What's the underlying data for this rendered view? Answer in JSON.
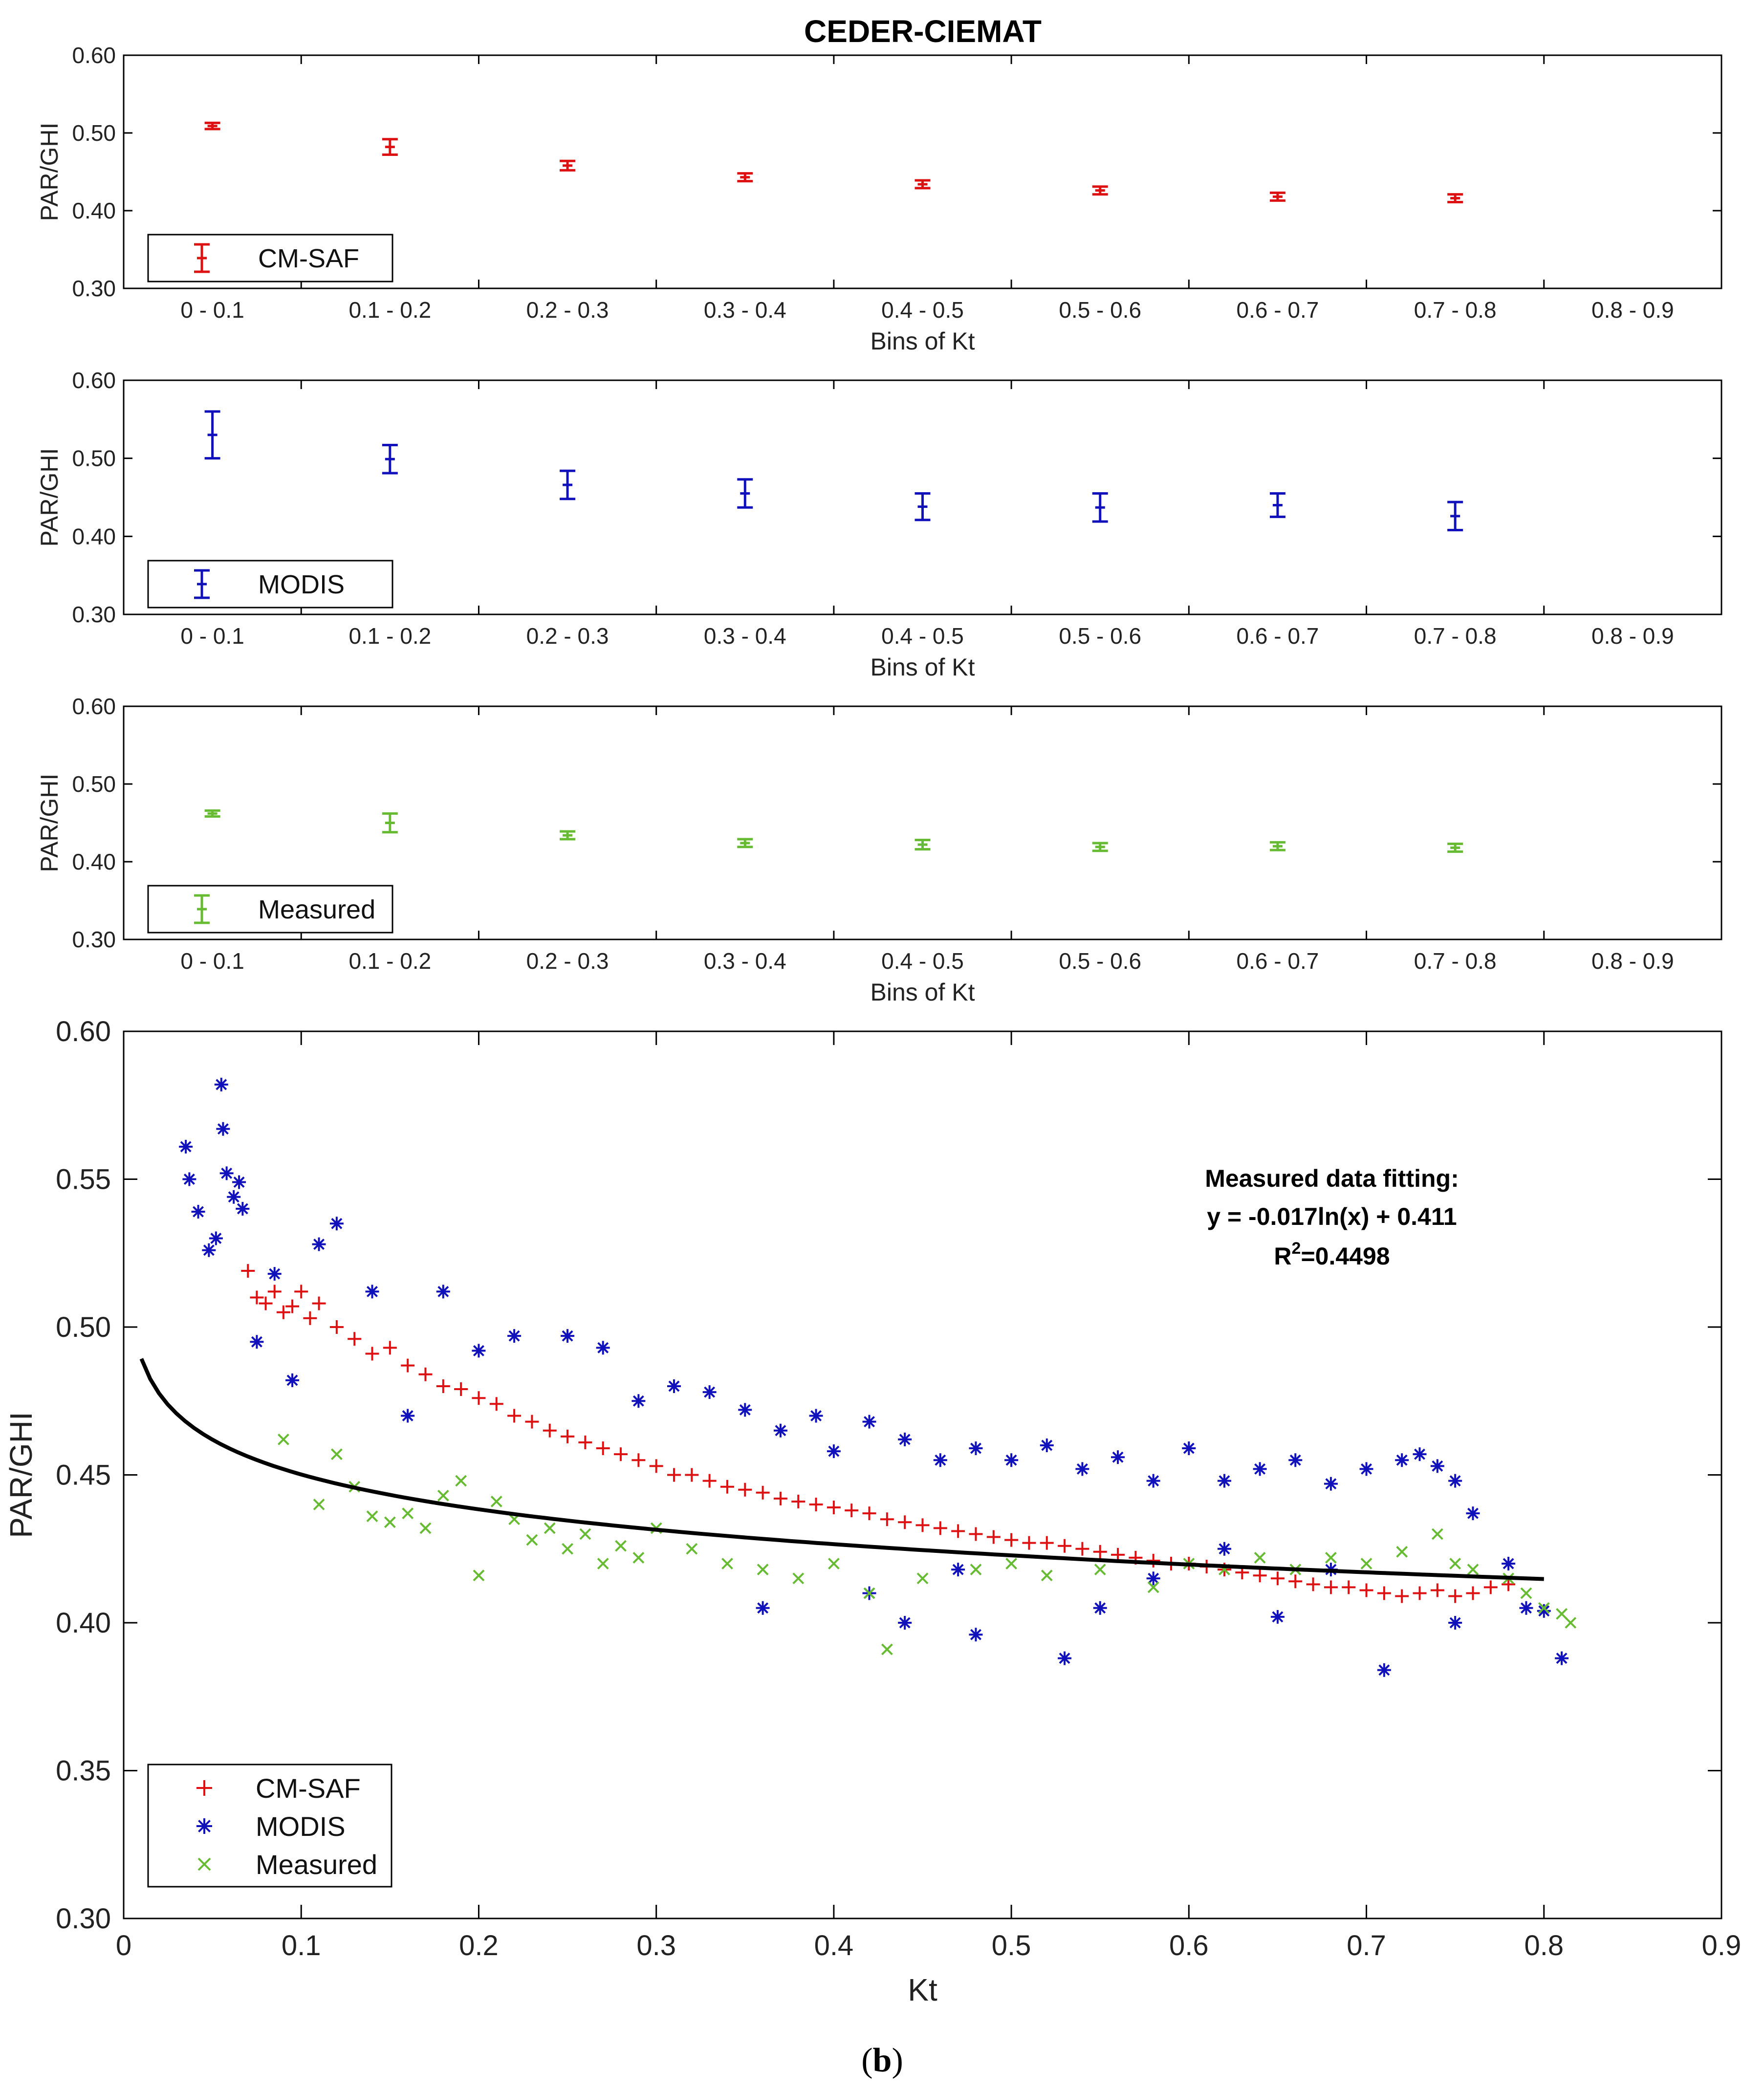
{
  "figure": {
    "title": "CEDER-CIEMAT",
    "caption_open": "(",
    "caption_letter": "b",
    "caption_close": ")"
  },
  "chart_data": [
    {
      "type": "errorbar",
      "ylabel": "PAR/GHI",
      "xlabel": "Bins of Kt",
      "ylim": [
        0.3,
        0.6
      ],
      "yticks": [
        "0.30",
        "0.40",
        "0.50",
        "0.60"
      ],
      "categories": [
        "0 - 0.1",
        "0.1 - 0.2",
        "0.2 - 0.3",
        "0.3 - 0.4",
        "0.4 - 0.5",
        "0.5 - 0.6",
        "0.6 - 0.7",
        "0.7 - 0.8",
        "0.8 - 0.9"
      ],
      "series": [
        {
          "name": "CM-SAF",
          "color": "#dd1111",
          "values": [
            0.509,
            0.482,
            0.458,
            0.443,
            0.434,
            0.426,
            0.418,
            0.416,
            null
          ],
          "errors": [
            0.004,
            0.01,
            0.006,
            0.005,
            0.005,
            0.005,
            0.005,
            0.005,
            null
          ]
        }
      ],
      "legend": "bottom-left",
      "grid": false
    },
    {
      "type": "errorbar",
      "ylabel": "PAR/GHI",
      "xlabel": "Bins of Kt",
      "ylim": [
        0.3,
        0.6
      ],
      "yticks": [
        "0.30",
        "0.40",
        "0.50",
        "0.60"
      ],
      "categories": [
        "0 - 0.1",
        "0.1 - 0.2",
        "0.2 - 0.3",
        "0.3 - 0.4",
        "0.4 - 0.5",
        "0.5 - 0.6",
        "0.6 - 0.7",
        "0.7 - 0.8",
        "0.8 - 0.9"
      ],
      "series": [
        {
          "name": "MODIS",
          "color": "#1111bb",
          "values": [
            0.53,
            0.499,
            0.466,
            0.455,
            0.438,
            0.437,
            0.44,
            0.426,
            null
          ],
          "errors": [
            0.03,
            0.018,
            0.018,
            0.018,
            0.017,
            0.018,
            0.015,
            0.018,
            null
          ]
        }
      ],
      "legend": "bottom-left",
      "grid": false
    },
    {
      "type": "errorbar",
      "ylabel": "PAR/GHI",
      "xlabel": "Bins of Kt",
      "ylim": [
        0.3,
        0.6
      ],
      "yticks": [
        "0.30",
        "0.40",
        "0.50",
        "0.60"
      ],
      "categories": [
        "0 - 0.1",
        "0.1 - 0.2",
        "0.2 - 0.3",
        "0.3 - 0.4",
        "0.4 - 0.5",
        "0.5 - 0.6",
        "0.6 - 0.7",
        "0.7 - 0.8",
        "0.8 - 0.9"
      ],
      "series": [
        {
          "name": "Measured",
          "color": "#66bb33",
          "values": [
            0.462,
            0.45,
            0.434,
            0.424,
            0.422,
            0.419,
            0.42,
            0.418,
            null
          ],
          "errors": [
            0.002,
            0.012,
            0.005,
            0.005,
            0.006,
            0.005,
            0.005,
            0.005,
            null
          ]
        }
      ],
      "legend": "bottom-left",
      "grid": false
    },
    {
      "type": "scatter",
      "xlabel": "Kt",
      "ylabel": "PAR/GHI",
      "xlim": [
        0,
        0.9
      ],
      "ylim": [
        0.3,
        0.6
      ],
      "xticks": [
        "0",
        "0.1",
        "0.2",
        "0.3",
        "0.4",
        "0.5",
        "0.6",
        "0.7",
        "0.8",
        "0.9"
      ],
      "yticks": [
        "0.30",
        "0.35",
        "0.40",
        "0.45",
        "0.50",
        "0.55",
        "0.60"
      ],
      "series": [
        {
          "name": "CM-SAF",
          "marker": "+",
          "color": "#dd1111",
          "points": [
            [
              0.07,
              0.519
            ],
            [
              0.075,
              0.51
            ],
            [
              0.08,
              0.508
            ],
            [
              0.085,
              0.512
            ],
            [
              0.09,
              0.505
            ],
            [
              0.095,
              0.507
            ],
            [
              0.1,
              0.512
            ],
            [
              0.105,
              0.503
            ],
            [
              0.11,
              0.508
            ],
            [
              0.12,
              0.5
            ],
            [
              0.13,
              0.496
            ],
            [
              0.14,
              0.491
            ],
            [
              0.15,
              0.493
            ],
            [
              0.16,
              0.487
            ],
            [
              0.17,
              0.484
            ],
            [
              0.18,
              0.48
            ],
            [
              0.19,
              0.479
            ],
            [
              0.2,
              0.476
            ],
            [
              0.21,
              0.474
            ],
            [
              0.22,
              0.47
            ],
            [
              0.23,
              0.468
            ],
            [
              0.24,
              0.465
            ],
            [
              0.25,
              0.463
            ],
            [
              0.26,
              0.461
            ],
            [
              0.27,
              0.459
            ],
            [
              0.28,
              0.457
            ],
            [
              0.29,
              0.455
            ],
            [
              0.3,
              0.453
            ],
            [
              0.31,
              0.45
            ],
            [
              0.32,
              0.45
            ],
            [
              0.33,
              0.448
            ],
            [
              0.34,
              0.446
            ],
            [
              0.35,
              0.445
            ],
            [
              0.36,
              0.444
            ],
            [
              0.37,
              0.442
            ],
            [
              0.38,
              0.441
            ],
            [
              0.39,
              0.44
            ],
            [
              0.4,
              0.439
            ],
            [
              0.41,
              0.438
            ],
            [
              0.42,
              0.437
            ],
            [
              0.43,
              0.435
            ],
            [
              0.44,
              0.434
            ],
            [
              0.45,
              0.433
            ],
            [
              0.46,
              0.432
            ],
            [
              0.47,
              0.431
            ],
            [
              0.48,
              0.43
            ],
            [
              0.49,
              0.429
            ],
            [
              0.5,
              0.428
            ],
            [
              0.51,
              0.427
            ],
            [
              0.52,
              0.427
            ],
            [
              0.53,
              0.426
            ],
            [
              0.54,
              0.425
            ],
            [
              0.55,
              0.424
            ],
            [
              0.56,
              0.423
            ],
            [
              0.57,
              0.422
            ],
            [
              0.58,
              0.421
            ],
            [
              0.59,
              0.42
            ],
            [
              0.6,
              0.42
            ],
            [
              0.61,
              0.419
            ],
            [
              0.62,
              0.418
            ],
            [
              0.63,
              0.417
            ],
            [
              0.64,
              0.416
            ],
            [
              0.65,
              0.415
            ],
            [
              0.66,
              0.414
            ],
            [
              0.67,
              0.413
            ],
            [
              0.68,
              0.412
            ],
            [
              0.69,
              0.412
            ],
            [
              0.7,
              0.411
            ],
            [
              0.71,
              0.41
            ],
            [
              0.72,
              0.409
            ],
            [
              0.73,
              0.41
            ],
            [
              0.74,
              0.411
            ],
            [
              0.75,
              0.409
            ],
            [
              0.76,
              0.41
            ],
            [
              0.77,
              0.412
            ],
            [
              0.78,
              0.413
            ]
          ]
        },
        {
          "name": "MODIS",
          "marker": "*",
          "color": "#1111bb",
          "points": [
            [
              0.035,
              0.561
            ],
            [
              0.037,
              0.55
            ],
            [
              0.042,
              0.539
            ],
            [
              0.048,
              0.526
            ],
            [
              0.052,
              0.53
            ],
            [
              0.055,
              0.582
            ],
            [
              0.056,
              0.567
            ],
            [
              0.058,
              0.552
            ],
            [
              0.062,
              0.544
            ],
            [
              0.065,
              0.549
            ],
            [
              0.067,
              0.54
            ],
            [
              0.075,
              0.495
            ],
            [
              0.085,
              0.518
            ],
            [
              0.095,
              0.482
            ],
            [
              0.11,
              0.528
            ],
            [
              0.12,
              0.535
            ],
            [
              0.14,
              0.512
            ],
            [
              0.16,
              0.47
            ],
            [
              0.18,
              0.512
            ],
            [
              0.2,
              0.492
            ],
            [
              0.22,
              0.497
            ],
            [
              0.25,
              0.497
            ],
            [
              0.27,
              0.493
            ],
            [
              0.29,
              0.475
            ],
            [
              0.31,
              0.48
            ],
            [
              0.33,
              0.478
            ],
            [
              0.35,
              0.472
            ],
            [
              0.37,
              0.465
            ],
            [
              0.39,
              0.47
            ],
            [
              0.4,
              0.458
            ],
            [
              0.42,
              0.468
            ],
            [
              0.44,
              0.462
            ],
            [
              0.46,
              0.455
            ],
            [
              0.48,
              0.459
            ],
            [
              0.5,
              0.455
            ],
            [
              0.52,
              0.46
            ],
            [
              0.54,
              0.452
            ],
            [
              0.56,
              0.456
            ],
            [
              0.58,
              0.448
            ],
            [
              0.6,
              0.459
            ],
            [
              0.62,
              0.448
            ],
            [
              0.64,
              0.452
            ],
            [
              0.66,
              0.455
            ],
            [
              0.68,
              0.447
            ],
            [
              0.7,
              0.452
            ],
            [
              0.72,
              0.455
            ],
            [
              0.73,
              0.457
            ],
            [
              0.74,
              0.453
            ],
            [
              0.75,
              0.448
            ],
            [
              0.76,
              0.437
            ],
            [
              0.78,
              0.42
            ],
            [
              0.8,
              0.404
            ],
            [
              0.81,
              0.388
            ],
            [
              0.71,
              0.384
            ],
            [
              0.53,
              0.388
            ],
            [
              0.48,
              0.396
            ],
            [
              0.44,
              0.4
            ],
            [
              0.36,
              0.405
            ],
            [
              0.42,
              0.41
            ],
            [
              0.55,
              0.405
            ],
            [
              0.65,
              0.402
            ],
            [
              0.75,
              0.4
            ],
            [
              0.79,
              0.405
            ],
            [
              0.47,
              0.418
            ],
            [
              0.58,
              0.415
            ],
            [
              0.62,
              0.425
            ],
            [
              0.68,
              0.418
            ]
          ]
        },
        {
          "name": "Measured",
          "marker": "x",
          "color": "#66bb33",
          "points": [
            [
              0.09,
              0.462
            ],
            [
              0.11,
              0.44
            ],
            [
              0.12,
              0.457
            ],
            [
              0.13,
              0.446
            ],
            [
              0.14,
              0.436
            ],
            [
              0.15,
              0.434
            ],
            [
              0.16,
              0.437
            ],
            [
              0.17,
              0.432
            ],
            [
              0.18,
              0.443
            ],
            [
              0.19,
              0.448
            ],
            [
              0.2,
              0.416
            ],
            [
              0.21,
              0.441
            ],
            [
              0.22,
              0.435
            ],
            [
              0.23,
              0.428
            ],
            [
              0.24,
              0.432
            ],
            [
              0.25,
              0.425
            ],
            [
              0.26,
              0.43
            ],
            [
              0.27,
              0.42
            ],
            [
              0.28,
              0.426
            ],
            [
              0.29,
              0.422
            ],
            [
              0.3,
              0.432
            ],
            [
              0.32,
              0.425
            ],
            [
              0.34,
              0.42
            ],
            [
              0.36,
              0.418
            ],
            [
              0.38,
              0.415
            ],
            [
              0.4,
              0.42
            ],
            [
              0.42,
              0.41
            ],
            [
              0.43,
              0.391
            ],
            [
              0.45,
              0.415
            ],
            [
              0.48,
              0.418
            ],
            [
              0.5,
              0.42
            ],
            [
              0.52,
              0.416
            ],
            [
              0.55,
              0.418
            ],
            [
              0.58,
              0.412
            ],
            [
              0.6,
              0.42
            ],
            [
              0.62,
              0.418
            ],
            [
              0.64,
              0.422
            ],
            [
              0.66,
              0.418
            ],
            [
              0.68,
              0.422
            ],
            [
              0.7,
              0.42
            ],
            [
              0.72,
              0.424
            ],
            [
              0.74,
              0.43
            ],
            [
              0.75,
              0.42
            ],
            [
              0.76,
              0.418
            ],
            [
              0.78,
              0.415
            ],
            [
              0.79,
              0.41
            ],
            [
              0.8,
              0.405
            ],
            [
              0.81,
              0.403
            ],
            [
              0.815,
              0.4
            ]
          ]
        }
      ],
      "fit": {
        "color": "#000000",
        "equation": "y = -0.017ln(x) + 0.411",
        "a": -0.017,
        "b": 0.411,
        "x_range": [
          0.01,
          0.8
        ]
      },
      "annotation": {
        "line1": "Measured data fitting:",
        "line2": "y = -0.017ln(x) + 0.411",
        "r2_prefix": "R",
        "r2_sup": "2",
        "r2_value": "=0.4498"
      },
      "legend": "bottom-left",
      "grid": false
    }
  ]
}
